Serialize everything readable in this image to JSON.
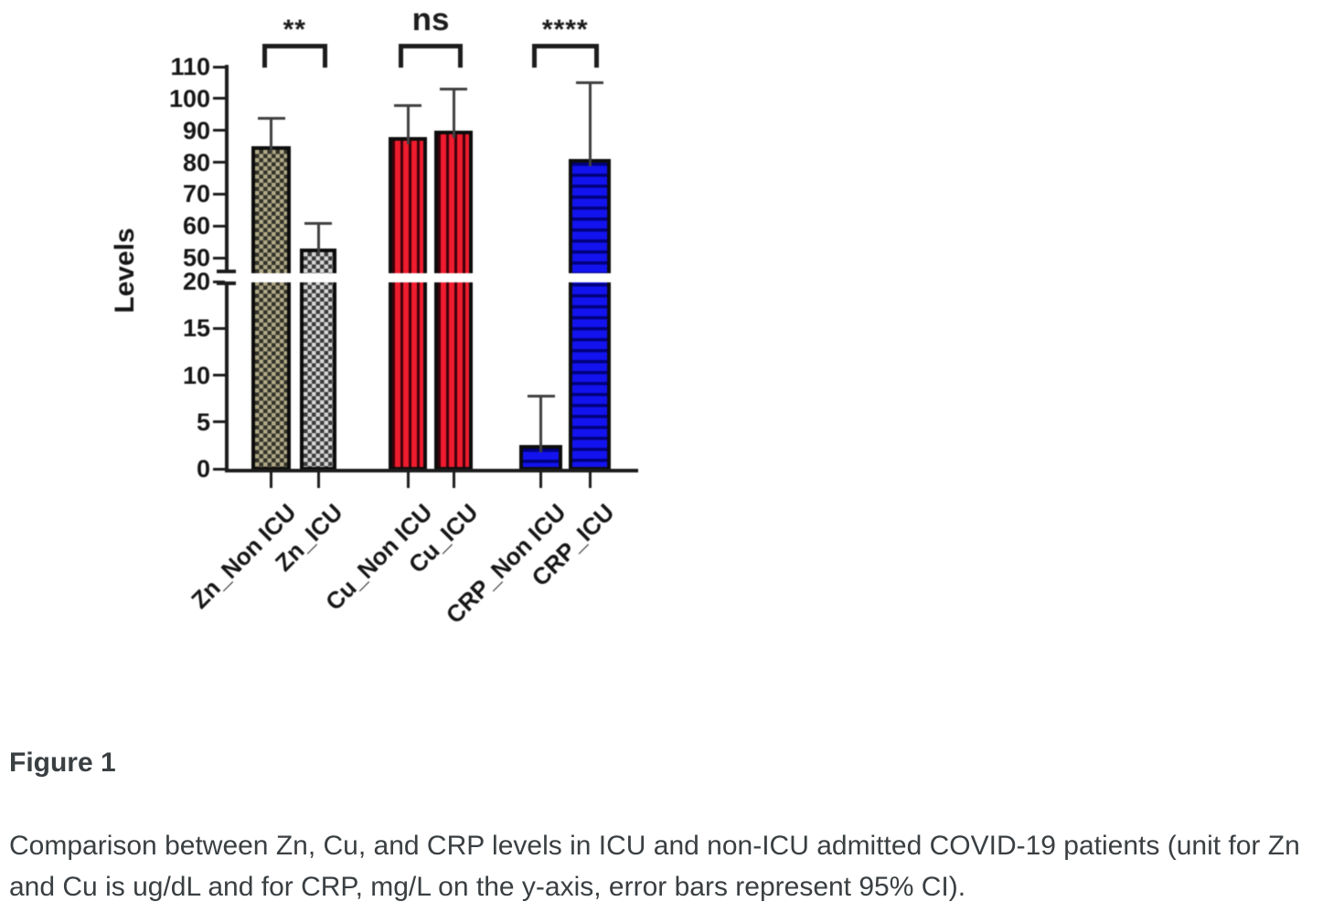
{
  "figure": {
    "label": "Figure 1",
    "caption_lines": [
      "Comparison between Zn, Cu, and CRP levels in ICU and non-ICU admitted COVID-19 patients (unit for Zn",
      "and Cu is ug/dL and for CRP, mg/L on the y-axis, error bars represent 95% CI)."
    ]
  },
  "chart_data": {
    "type": "bar",
    "title": "",
    "xlabel": "",
    "ylabel": "Levels",
    "error_bar_meaning": "95% CI",
    "categories": [
      "Zn_Non ICU",
      "Zn_ICU",
      "Cu_Non ICU",
      "Cu_ICU",
      "CRP_Non ICU",
      "CRP_ICU"
    ],
    "values": [
      85,
      53,
      88,
      90,
      2.5,
      81
    ],
    "error_upper": [
      94,
      61,
      98,
      103,
      7.8,
      105
    ],
    "axis_break": {
      "lower_range": [
        0,
        20
      ],
      "upper_range": [
        50,
        110
      ]
    },
    "yticks_lower": [
      0,
      5,
      10,
      15,
      20
    ],
    "yticks_upper": [
      50,
      60,
      70,
      80,
      90,
      100,
      110
    ],
    "grid": false,
    "legend": "none",
    "bar_styles": [
      {
        "fill": "#b0a886",
        "pattern": "checker",
        "pattern_color": "#33332a"
      },
      {
        "fill": "#d4d4d4",
        "pattern": "checker",
        "pattern_color": "#3c3c3c"
      },
      {
        "fill": "#ee1c2e",
        "pattern": "vertical-stripes",
        "pattern_color": "#3c000a"
      },
      {
        "fill": "#ee1c2e",
        "pattern": "vertical-stripes",
        "pattern_color": "#3c000a"
      },
      {
        "fill": "#1313ef",
        "pattern": "horizontal-stripes",
        "pattern_color": "#00007d"
      },
      {
        "fill": "#1313ef",
        "pattern": "horizontal-stripes",
        "pattern_color": "#00007d"
      }
    ],
    "comparisons": [
      {
        "groups": [
          0,
          1
        ],
        "label": "**"
      },
      {
        "groups": [
          2,
          3
        ],
        "label": "ns"
      },
      {
        "groups": [
          4,
          5
        ],
        "label": "****"
      }
    ],
    "axis_color": "#1c1c1c"
  }
}
